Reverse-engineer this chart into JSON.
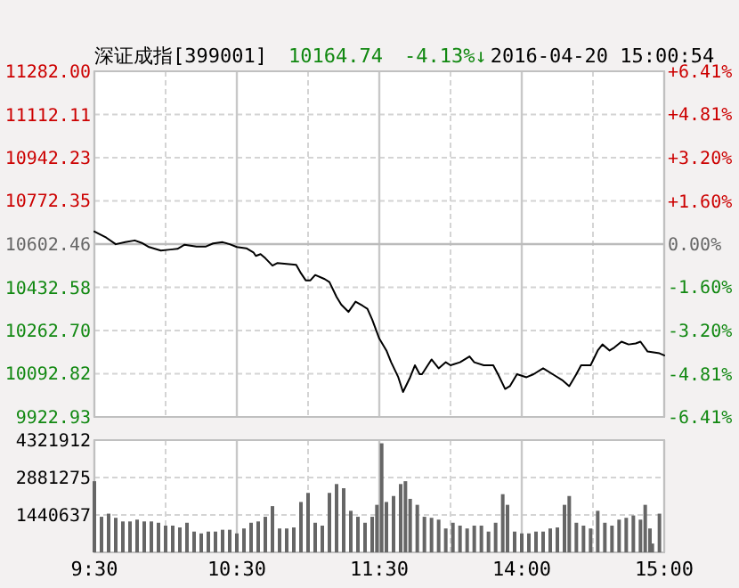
{
  "chart_data": [
    {
      "type": "line",
      "title": "深证成指[399001]",
      "annotations": [
        "10164.74",
        "-4.13%↓",
        "2016-04-20 15:00:54"
      ],
      "categories": [
        null,
        null,
        null,
        null,
        null,
        null,
        null,
        null,
        null,
        null,
        null,
        null,
        null,
        null,
        null,
        null,
        null,
        null,
        null,
        null,
        null,
        null,
        null,
        null,
        null,
        null,
        null,
        null,
        null,
        null,
        null,
        null,
        null,
        null,
        null,
        null,
        null,
        null,
        null,
        null,
        null,
        null,
        null,
        null,
        null,
        null,
        null,
        null,
        null,
        null,
        null,
        null,
        null,
        null,
        null,
        null,
        null,
        null,
        null,
        null,
        null,
        null,
        null,
        null,
        null,
        null,
        null,
        null,
        null,
        null,
        null,
        null,
        null,
        null,
        null,
        null,
        null,
        null,
        null,
        null,
        null,
        null,
        null,
        null,
        null,
        null,
        null,
        null,
        null,
        null,
        null,
        null,
        null,
        null,
        null,
        null,
        null,
        null,
        null,
        null,
        null,
        null,
        null,
        null,
        null,
        null,
        null,
        null,
        null,
        null,
        null,
        null,
        null,
        null,
        null,
        null,
        null,
        null,
        null,
        null,
        null,
        null,
        null,
        null,
        null,
        null,
        null,
        null,
        null,
        null,
        null,
        null,
        null,
        null,
        null,
        null,
        null,
        null,
        null,
        null,
        null,
        null,
        null,
        null,
        null,
        null,
        null,
        null,
        null,
        null,
        null,
        null,
        null,
        null,
        null,
        null,
        null,
        null,
        null,
        null,
        null,
        null,
        null,
        null,
        null,
        null,
        null,
        null,
        null,
        null,
        null,
        null,
        null,
        null,
        null,
        null,
        null,
        null,
        null,
        null,
        null,
        null,
        null,
        null,
        null,
        null,
        null,
        null,
        null,
        null,
        null,
        null,
        null,
        null,
        null,
        null,
        null,
        null,
        null,
        null,
        null,
        null,
        null,
        null,
        null,
        null,
        null,
        null,
        null,
        null,
        null,
        null,
        null,
        null,
        null,
        null,
        null,
        null,
        null,
        null,
        null,
        null,
        null,
        null,
        null,
        null,
        null,
        null,
        null,
        null,
        null,
        null,
        null,
        null,
        null,
        null,
        null,
        null,
        null,
        null,
        null
      ],
      "values": [
        10652,
        null,
        null,
        null,
        null,
        10628,
        null,
        null,
        null,
        10602,
        null,
        null,
        null,
        10610,
        null,
        null,
        null,
        10617,
        null,
        null,
        10607,
        null,
        null,
        10591,
        null,
        null,
        null,
        null,
        10577,
        null,
        null,
        null,
        10581,
        null,
        null,
        10584,
        null,
        null,
        10600,
        null,
        null,
        null,
        null,
        10593,
        null,
        null,
        null,
        10593,
        null,
        null,
        10605,
        null,
        null,
        null,
        10610,
        null,
        null,
        10602,
        null,
        null,
        10591,
        null,
        null,
        null,
        10586,
        null,
        null,
        10570,
        10556,
        null,
        10563,
        null,
        10547,
        null,
        null,
        10518,
        null,
        10528,
        null,
        10526,
        null,
        null,
        null,
        null,
        null,
        10521,
        null,
        10488,
        null,
        10460,
        null,
        10460,
        null,
        10481,
        null,
        null,
        null,
        10465,
        null,
        10453,
        null,
        null,
        10395,
        null,
        10364,
        null,
        null,
        10336,
        null,
        null,
        10376,
        null,
        null,
        10360,
        null,
        10348,
        null,
        10306,
        null,
        null,
        10231,
        null,
        null,
        10184,
        null,
        10138,
        null,
        null,
        10079,
        null,
        10021,
        null,
        null,
        10079,
        null,
        10126,
        null,
        10091,
        10091,
        null,
        null,
        null,
        10149,
        null,
        null,
        10114,
        null,
        null,
        10138,
        null,
        10126,
        null,
        null,
        null,
        10138,
        null,
        null,
        null,
        10161,
        null,
        10138,
        null,
        null,
        null,
        10126,
        null,
        null,
        null,
        10126,
        null,
        10091,
        null,
        null,
        10033,
        null,
        10044,
        null,
        null,
        10091,
        null,
        null,
        null,
        10079,
        null,
        null,
        10091,
        null,
        null,
        null,
        10114,
        null,
        null,
        null,
        10091,
        null,
        null,
        null,
        10068,
        null,
        null,
        10044,
        null,
        null,
        10091,
        null,
        10126,
        null,
        null,
        null,
        10126,
        null,
        null,
        10184,
        null,
        10208,
        null,
        null,
        10184,
        null,
        10196,
        null,
        null,
        10219,
        null,
        null,
        10208,
        null,
        null,
        10212,
        null,
        10219,
        null,
        null,
        10180,
        null,
        null,
        null,
        null,
        10173,
        null,
        10165
      ],
      "color": "#000000",
      "ylim": [
        9922.93,
        11282.0
      ],
      "yticks": [
        {
          "value": 11282.0,
          "label": "11282.00"
        },
        {
          "value": 11112.11,
          "label": "11112.11"
        },
        {
          "value": 10942.23,
          "label": "10942.23"
        },
        {
          "value": 10772.35,
          "label": "10772.35"
        },
        {
          "value": 10602.46,
          "label": "10602.46"
        },
        {
          "value": 10432.58,
          "label": "10432.58"
        },
        {
          "value": 10262.7,
          "label": "10262.70"
        },
        {
          "value": 10092.82,
          "label": "10092.82"
        },
        {
          "value": 9922.93,
          "label": "9922.93"
        }
      ],
      "y2lim": [
        -6.41,
        6.41
      ],
      "y2ticks": [
        {
          "value": 6.41,
          "label": "+6.41%"
        },
        {
          "value": 4.81,
          "label": "+4.81%"
        },
        {
          "value": 3.2,
          "label": "+3.20%"
        },
        {
          "value": 1.6,
          "label": "+1.60%"
        },
        {
          "value": 0,
          "label": "0.00%"
        },
        {
          "value": -1.6,
          "label": "-1.60%"
        },
        {
          "value": -3.2,
          "label": "-3.20%"
        },
        {
          "value": -4.81,
          "label": "-4.81%"
        },
        {
          "value": -6.41,
          "label": "-6.41%"
        }
      ],
      "grid": true,
      "ref_lines": [
        {
          "axis": "y",
          "value": 10602.46,
          "color": "#bbbbbb",
          "line_style": "solid"
        }
      ]
    },
    {
      "type": "bar",
      "color": "#666666",
      "categories": [
        "9:30",
        null,
        null,
        null,
        null,
        null,
        null,
        null,
        null,
        null,
        null,
        null,
        null,
        null,
        null,
        null,
        null,
        null,
        null,
        null,
        null,
        null,
        null,
        null,
        null,
        null,
        null,
        null,
        null,
        null,
        null,
        null,
        null,
        null,
        null,
        null,
        null,
        null,
        null,
        null,
        null,
        null,
        null,
        null,
        null,
        null,
        null,
        null,
        null,
        null,
        null,
        null,
        null,
        null,
        null,
        null,
        null,
        null,
        null,
        null,
        "10:30",
        null,
        null,
        null,
        null,
        null,
        null,
        null,
        null,
        null,
        null,
        null,
        null,
        null,
        null,
        null,
        null,
        null,
        null,
        null,
        null,
        null,
        null,
        null,
        null,
        null,
        null,
        null,
        null,
        null,
        null,
        null,
        null,
        null,
        null,
        null,
        null,
        null,
        null,
        null,
        null,
        null,
        null,
        null,
        null,
        null,
        null,
        null,
        null,
        null,
        null,
        null,
        null,
        null,
        null,
        null,
        null,
        null,
        null,
        null,
        "11:30",
        null,
        null,
        null,
        null,
        null,
        null,
        null,
        null,
        null,
        null,
        null,
        null,
        null,
        null,
        null,
        null,
        null,
        null,
        null,
        null,
        null,
        null,
        null,
        null,
        null,
        null,
        null,
        null,
        null,
        null,
        null,
        null,
        null,
        null,
        null,
        null,
        null,
        null,
        null,
        null,
        null,
        null,
        null,
        null,
        null,
        null,
        null,
        null,
        null,
        null,
        null,
        null,
        null,
        null,
        null,
        null,
        null,
        null,
        null,
        "14:00",
        null,
        null,
        null,
        null,
        null,
        null,
        null,
        null,
        null,
        null,
        null,
        null,
        null,
        null,
        null,
        null,
        null,
        null,
        null,
        null,
        null,
        null,
        null,
        null,
        null,
        null,
        null,
        null,
        null,
        null,
        null,
        null,
        null,
        null,
        null,
        null,
        null,
        null,
        null,
        null,
        null,
        null,
        null,
        null,
        null,
        null,
        null,
        null,
        null,
        null,
        null,
        null,
        null,
        null,
        null,
        null,
        null,
        null,
        null,
        "15:00"
      ],
      "values": [
        2740000,
        null,
        null,
        1370000,
        null,
        null,
        1490000,
        null,
        null,
        1330000,
        null,
        null,
        1190000,
        null,
        null,
        1190000,
        null,
        null,
        1260000,
        null,
        null,
        1190000,
        null,
        null,
        1190000,
        null,
        null,
        1140000,
        null,
        null,
        1030000,
        null,
        null,
        1030000,
        null,
        null,
        960000,
        null,
        null,
        1140000,
        null,
        null,
        800000,
        null,
        null,
        730000,
        null,
        null,
        800000,
        null,
        null,
        800000,
        null,
        null,
        870000,
        null,
        null,
        870000,
        null,
        null,
        730000,
        null,
        null,
        920000,
        null,
        null,
        1140000,
        null,
        null,
        1190000,
        null,
        null,
        1370000,
        null,
        null,
        1780000,
        null,
        null,
        920000,
        null,
        null,
        920000,
        null,
        null,
        960000,
        null,
        null,
        1940000,
        null,
        null,
        2290000,
        null,
        null,
        1140000,
        null,
        null,
        1030000,
        null,
        null,
        2290000,
        null,
        null,
        2630000,
        null,
        null,
        2470000,
        null,
        null,
        1600000,
        null,
        null,
        1370000,
        null,
        null,
        1140000,
        null,
        null,
        1370000,
        null,
        1830000,
        null,
        4200000,
        null,
        1940000,
        null,
        null,
        2170000,
        null,
        null,
        2630000,
        null,
        2740000,
        null,
        2060000,
        null,
        null,
        1830000,
        null,
        null,
        1370000,
        null,
        null,
        1330000,
        null,
        null,
        1260000,
        null,
        null,
        920000,
        null,
        null,
        1140000,
        null,
        null,
        1030000,
        null,
        null,
        920000,
        null,
        null,
        1030000,
        null,
        null,
        1030000,
        null,
        null,
        800000,
        null,
        null,
        1140000,
        null,
        null,
        2240000,
        null,
        1830000,
        null,
        null,
        800000,
        null,
        null,
        730000,
        null,
        null,
        730000,
        null,
        null,
        800000,
        null,
        null,
        800000,
        null,
        null,
        920000,
        null,
        null,
        960000,
        null,
        null,
        1830000,
        null,
        2170000,
        null,
        null,
        1140000,
        null,
        null,
        1030000,
        null,
        null,
        920000,
        null,
        null,
        1600000,
        null,
        null,
        1140000,
        null,
        null,
        1030000,
        null,
        null,
        1260000,
        null,
        null,
        1330000,
        null,
        null,
        1420000,
        null,
        null,
        1260000,
        null,
        1830000,
        null,
        920000,
        340000,
        null,
        null,
        1490000,
        null,
        null
      ],
      "ylim": [
        0,
        4321912
      ],
      "yticks": [
        {
          "value": 0,
          "label": null
        },
        1440637,
        2881275,
        4321912
      ],
      "grid": true
    }
  ]
}
